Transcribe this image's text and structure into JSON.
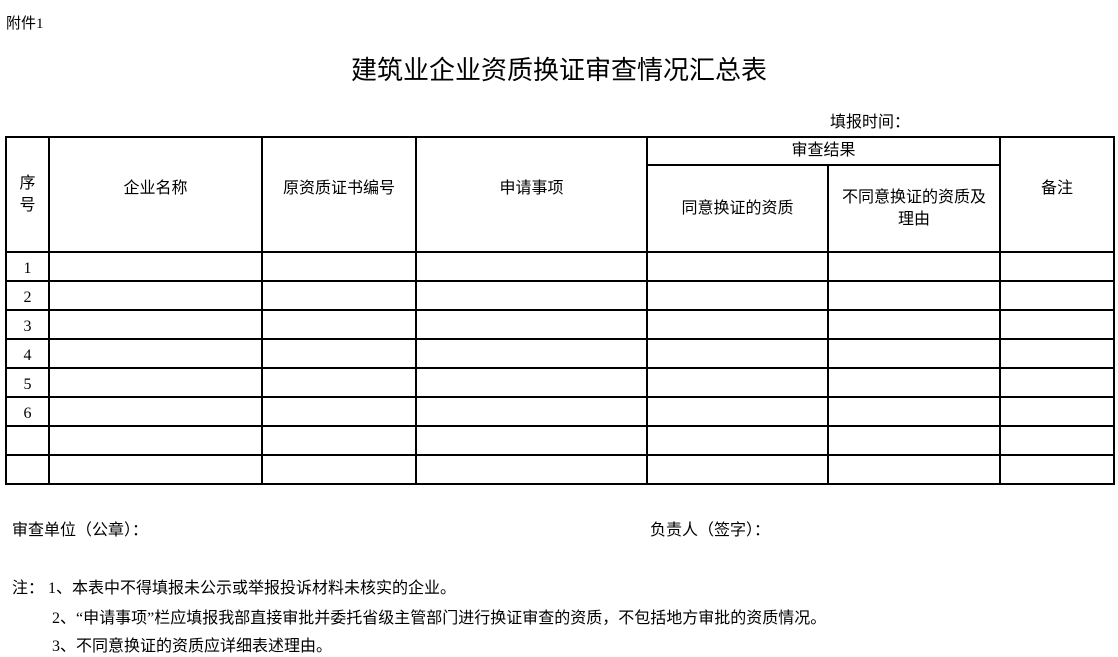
{
  "attachment_label": "附件1",
  "title": "建筑业企业资质换证审查情况汇总表",
  "fill_time_label": "填报时间：",
  "table": {
    "headers": {
      "seq": "序号",
      "company": "企业名称",
      "orig_cert_no": "原资质证书编号",
      "application": "申请事项",
      "review_result": "审查结果",
      "agreed": "同意换证的资质",
      "disagreed": "不同意换证的资质及理由",
      "remarks": "备注"
    },
    "rows": [
      "1",
      "2",
      "3",
      "4",
      "5",
      "6",
      "",
      ""
    ]
  },
  "review_unit_label": "审查单位（公章）：",
  "responsible_label": "负责人（签字）：",
  "notes": [
    "注：  1、本表中不得填报未公示或举报投诉材料未核实的企业。",
    "2、“申请事项”栏应填报我部直接审批并委托省级主管部门进行换证审查的资质，不包括地方审批的资质情况。",
    "3、不同意换证的资质应详细表述理由。"
  ]
}
